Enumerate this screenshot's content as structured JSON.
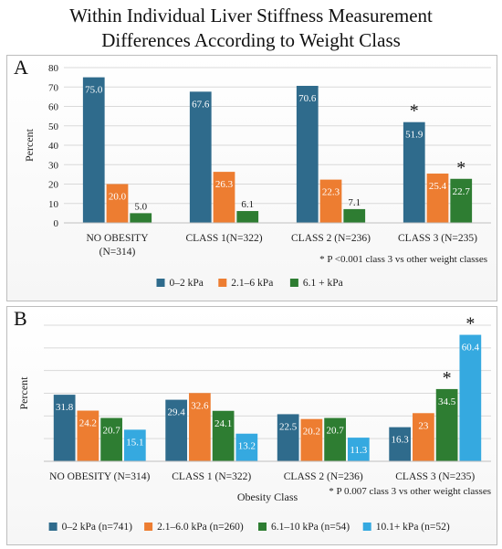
{
  "title_line1": "Within Individual Liver Stiffness Measurement",
  "title_line2": "Differences According to Weight Class",
  "chart_data": [
    {
      "panel": "A",
      "type": "bar",
      "categories": [
        "NO OBESITY\n(N=314)",
        "CLASS 1(N=322)",
        "CLASS 2 (N=236)",
        "CLASS 3 (N=235)"
      ],
      "series": [
        {
          "name": "0–2 kPa",
          "color": "#2f6b8c",
          "values": [
            75.0,
            67.6,
            70.6,
            51.9
          ]
        },
        {
          "name": "2.1–6 kPa",
          "color": "#ed7d31",
          "values": [
            20.0,
            26.3,
            22.3,
            25.4
          ]
        },
        {
          "name": "6.1 + kPa",
          "color": "#2e7d32",
          "values": [
            5.0,
            6.1,
            7.1,
            22.7
          ]
        }
      ],
      "value_labels": [
        [
          "75.0",
          "20.0",
          "5.0"
        ],
        [
          "67.6",
          "26.3",
          "6.1"
        ],
        [
          "70.6",
          "22.3",
          "7.1"
        ],
        [
          "51.9",
          "25.4",
          "22.7"
        ]
      ],
      "ylabel": "Percent",
      "xlabel": "",
      "ylim": [
        0,
        80
      ],
      "yticks": [
        "0",
        "10",
        "20",
        "30",
        "40",
        "50",
        "60",
        "70",
        "80"
      ],
      "grid": true,
      "legend": "bottom",
      "annotations": [
        {
          "text": "*",
          "category": 3,
          "series": 0
        },
        {
          "text": "*",
          "category": 3,
          "series": 2
        }
      ],
      "footnote": "* P <0.001 class 3 vs other weight classes"
    },
    {
      "panel": "B",
      "type": "bar",
      "categories": [
        "NO OBESITY (N=314)",
        "CLASS 1 (N=322)",
        "CLASS 2 (N=236)",
        "CLASS 3 (N=235)"
      ],
      "series": [
        {
          "name": "0–2 kPa (n=741)",
          "color": "#2f6b8c",
          "values": [
            31.8,
            29.4,
            22.5,
            16.3
          ]
        },
        {
          "name": "2.1–6.0 kPa (n=260)",
          "color": "#ed7d31",
          "values": [
            24.2,
            32.6,
            20.2,
            23
          ]
        },
        {
          "name": "6.1–10 kPa (n=54)",
          "color": "#2e7d32",
          "values": [
            20.7,
            24.1,
            20.7,
            34.5
          ]
        },
        {
          "name": "10.1+ kPa  (n=52)",
          "color": "#35a9e0",
          "values": [
            15.1,
            13.2,
            11.3,
            60.4
          ]
        }
      ],
      "value_labels": [
        [
          "31.8",
          "24.2",
          "20.7",
          "15.1"
        ],
        [
          "29.4",
          "32.6",
          "24.1",
          "13.2"
        ],
        [
          "22.5",
          "20.2",
          "20.7",
          "11.3"
        ],
        [
          "16.3",
          "23",
          "34.5",
          "60.4"
        ]
      ],
      "ylabel": "Percent",
      "xlabel": "Obesity Class",
      "ylim": [
        0,
        65
      ],
      "yticks": [],
      "grid": true,
      "legend": "bottom",
      "annotations": [
        {
          "text": "*",
          "category": 3,
          "series": 2
        },
        {
          "text": "*",
          "category": 3,
          "series": 3
        }
      ],
      "footnote": "* P 0.007 class 3 vs other weight classes"
    }
  ]
}
